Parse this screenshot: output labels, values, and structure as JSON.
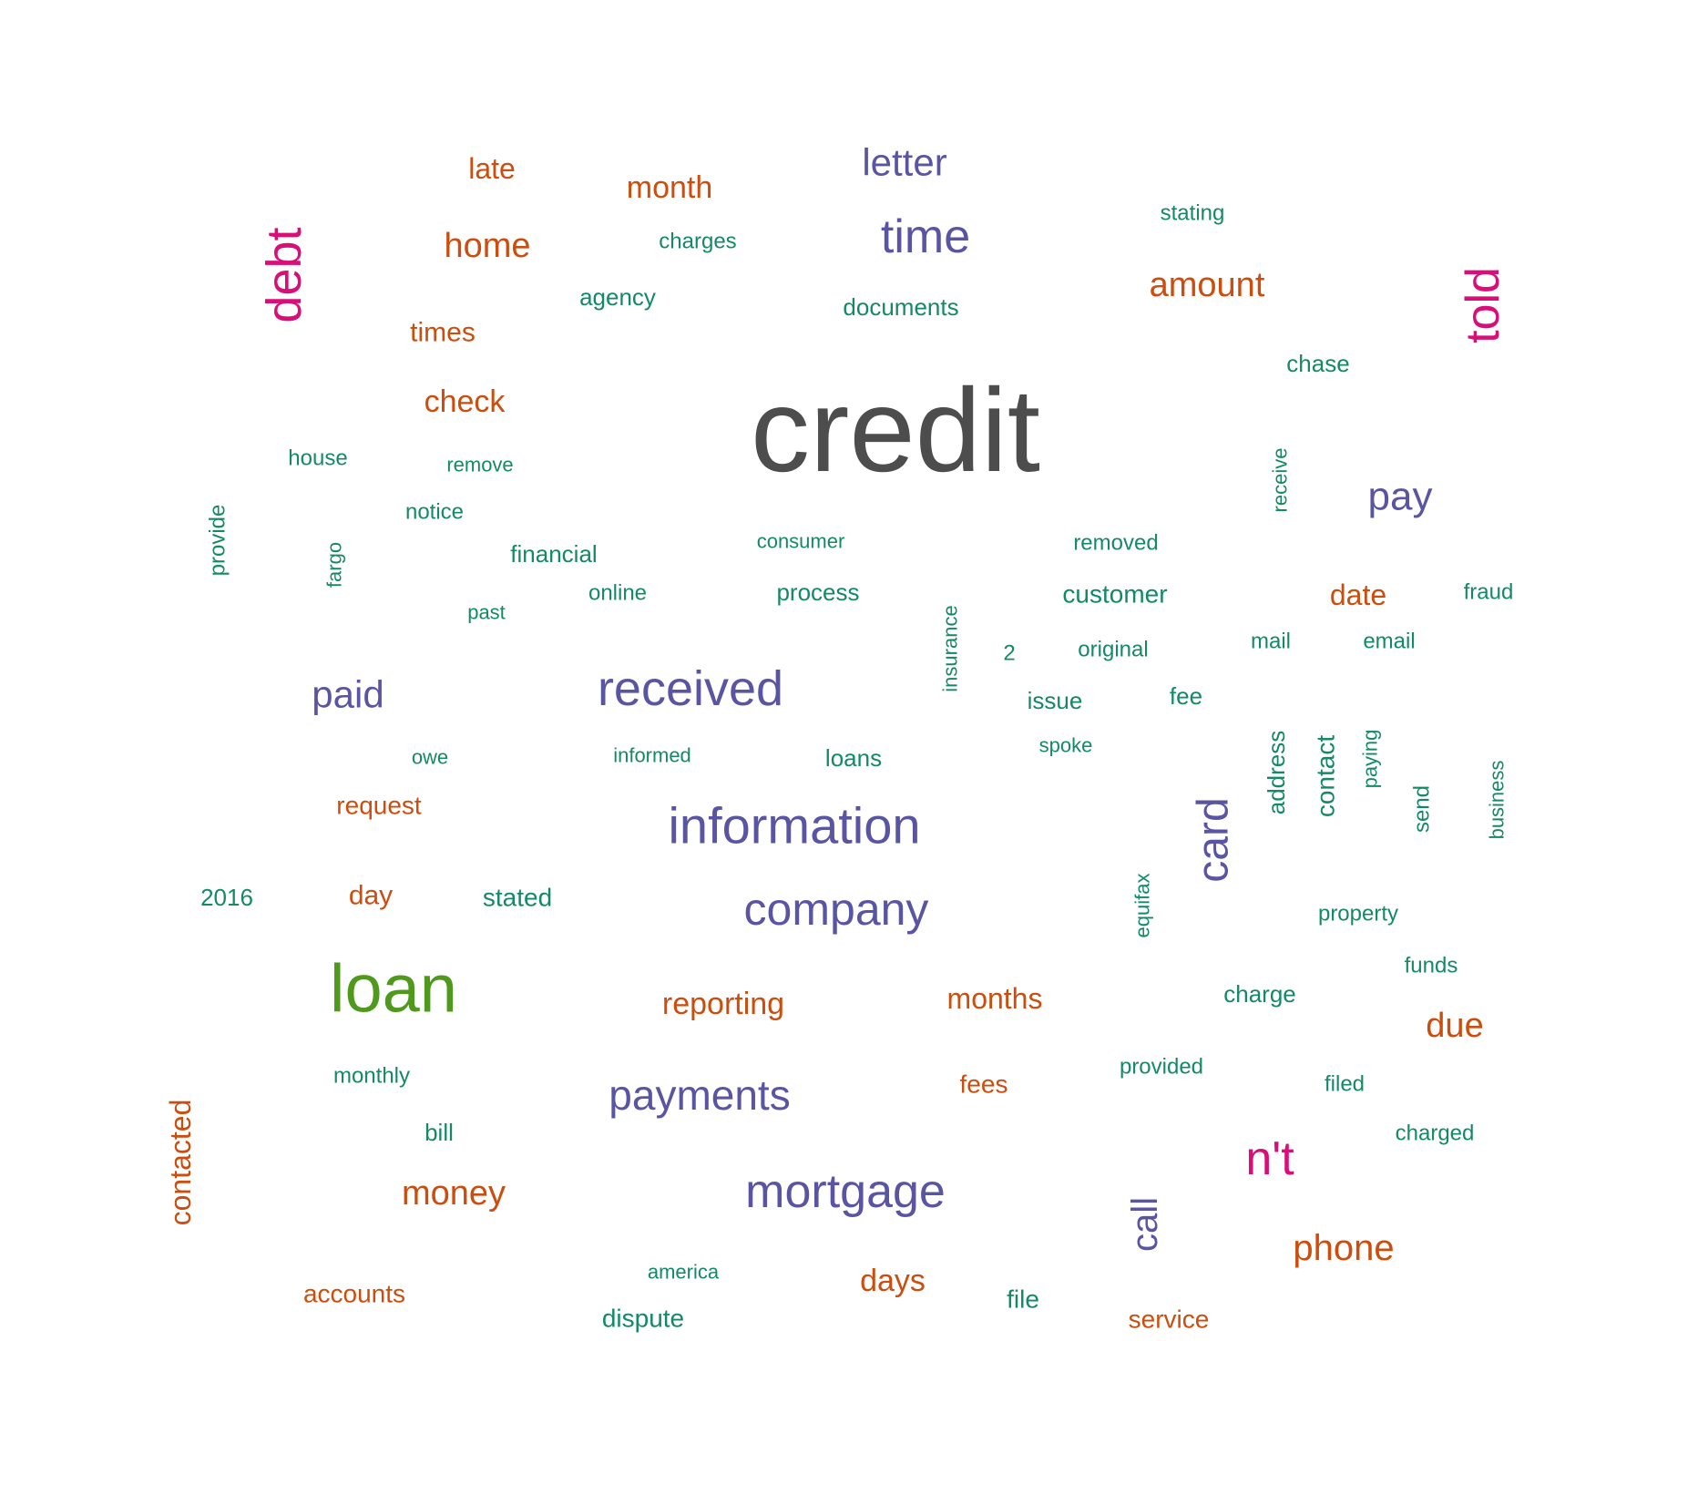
{
  "palette": {
    "grey": "#4d4d4d",
    "green": "#4f9a1c",
    "magenta": "#d80f78",
    "purple": "#5a55a3",
    "orange": "#cc4e0e",
    "teal": "#138a65"
  },
  "words": [
    {
      "text": "credit",
      "color": "grey"
    },
    {
      "text": "loan",
      "color": "green"
    },
    {
      "text": "debt",
      "color": "magenta"
    },
    {
      "text": "told",
      "color": "magenta"
    },
    {
      "text": "n't",
      "color": "magenta"
    },
    {
      "text": "letter",
      "color": "purple"
    },
    {
      "text": "time",
      "color": "purple"
    },
    {
      "text": "pay",
      "color": "purple"
    },
    {
      "text": "paid",
      "color": "purple"
    },
    {
      "text": "received",
      "color": "purple"
    },
    {
      "text": "information",
      "color": "purple"
    },
    {
      "text": "company",
      "color": "purple"
    },
    {
      "text": "card",
      "color": "purple"
    },
    {
      "text": "payments",
      "color": "purple"
    },
    {
      "text": "mortgage",
      "color": "purple"
    },
    {
      "text": "call",
      "color": "purple"
    },
    {
      "text": "late",
      "color": "orange"
    },
    {
      "text": "month",
      "color": "orange"
    },
    {
      "text": "home",
      "color": "orange"
    },
    {
      "text": "amount",
      "color": "orange"
    },
    {
      "text": "times",
      "color": "orange"
    },
    {
      "text": "check",
      "color": "orange"
    },
    {
      "text": "date",
      "color": "orange"
    },
    {
      "text": "request",
      "color": "orange"
    },
    {
      "text": "day",
      "color": "orange"
    },
    {
      "text": "reporting",
      "color": "orange"
    },
    {
      "text": "months",
      "color": "orange"
    },
    {
      "text": "due",
      "color": "orange"
    },
    {
      "text": "fees",
      "color": "orange"
    },
    {
      "text": "contacted",
      "color": "orange"
    },
    {
      "text": "money",
      "color": "orange"
    },
    {
      "text": "phone",
      "color": "orange"
    },
    {
      "text": "accounts",
      "color": "orange"
    },
    {
      "text": "days",
      "color": "orange"
    },
    {
      "text": "service",
      "color": "orange"
    },
    {
      "text": "stating",
      "color": "teal"
    },
    {
      "text": "charges",
      "color": "teal"
    },
    {
      "text": "agency",
      "color": "teal"
    },
    {
      "text": "documents",
      "color": "teal"
    },
    {
      "text": "chase",
      "color": "teal"
    },
    {
      "text": "house",
      "color": "teal"
    },
    {
      "text": "remove",
      "color": "teal"
    },
    {
      "text": "receive",
      "color": "teal"
    },
    {
      "text": "notice",
      "color": "teal"
    },
    {
      "text": "provide",
      "color": "teal"
    },
    {
      "text": "fargo",
      "color": "teal"
    },
    {
      "text": "financial",
      "color": "teal"
    },
    {
      "text": "consumer",
      "color": "teal"
    },
    {
      "text": "removed",
      "color": "teal"
    },
    {
      "text": "online",
      "color": "teal"
    },
    {
      "text": "process",
      "color": "teal"
    },
    {
      "text": "customer",
      "color": "teal"
    },
    {
      "text": "fraud",
      "color": "teal"
    },
    {
      "text": "past",
      "color": "teal"
    },
    {
      "text": "insurance",
      "color": "teal"
    },
    {
      "text": "2",
      "color": "teal"
    },
    {
      "text": "original",
      "color": "teal"
    },
    {
      "text": "mail",
      "color": "teal"
    },
    {
      "text": "email",
      "color": "teal"
    },
    {
      "text": "issue",
      "color": "teal"
    },
    {
      "text": "fee",
      "color": "teal"
    },
    {
      "text": "owe",
      "color": "teal"
    },
    {
      "text": "informed",
      "color": "teal"
    },
    {
      "text": "loans",
      "color": "teal"
    },
    {
      "text": "spoke",
      "color": "teal"
    },
    {
      "text": "address",
      "color": "teal"
    },
    {
      "text": "contact",
      "color": "teal"
    },
    {
      "text": "paying",
      "color": "teal"
    },
    {
      "text": "send",
      "color": "teal"
    },
    {
      "text": "business",
      "color": "teal"
    },
    {
      "text": "2016",
      "color": "teal"
    },
    {
      "text": "stated",
      "color": "teal"
    },
    {
      "text": "equifax",
      "color": "teal"
    },
    {
      "text": "property",
      "color": "teal"
    },
    {
      "text": "funds",
      "color": "teal"
    },
    {
      "text": "charge",
      "color": "teal"
    },
    {
      "text": "monthly",
      "color": "teal"
    },
    {
      "text": "provided",
      "color": "teal"
    },
    {
      "text": "filed",
      "color": "teal"
    },
    {
      "text": "bill",
      "color": "teal"
    },
    {
      "text": "charged",
      "color": "teal"
    },
    {
      "text": "america",
      "color": "teal"
    },
    {
      "text": "file",
      "color": "teal"
    },
    {
      "text": "dispute",
      "color": "teal"
    }
  ]
}
